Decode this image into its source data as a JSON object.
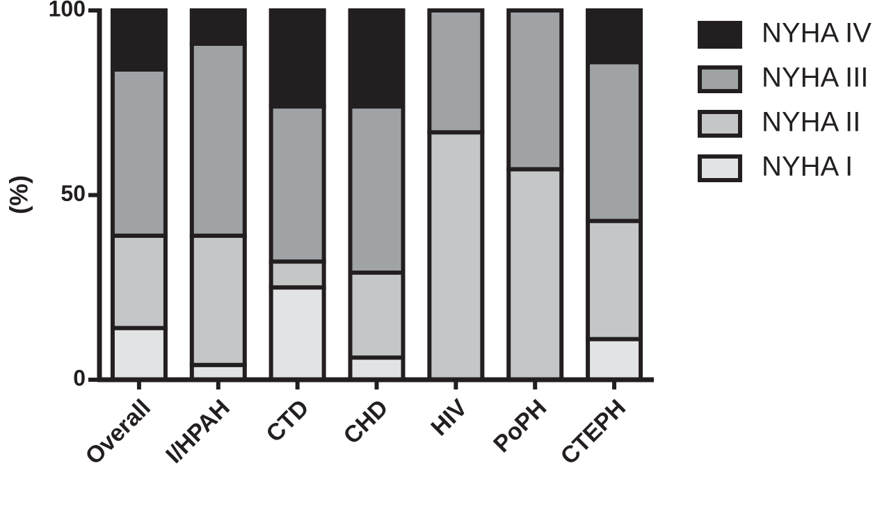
{
  "chart_data": {
    "type": "stacked_bar",
    "y_label": "(%)",
    "categories": [
      "Overall",
      "I/HPAH",
      "CTD",
      "CHD",
      "HIV",
      "PoPH",
      "CTEPH"
    ],
    "series": [
      {
        "name": "NYHA I",
        "color": "#e2e3e4",
        "values": [
          14,
          4,
          25,
          6,
          0,
          0,
          11
        ]
      },
      {
        "name": "NYHA II",
        "color": "#c5c6c8",
        "values": [
          25,
          35,
          7,
          23,
          67,
          57,
          32
        ]
      },
      {
        "name": "NYHA III",
        "color": "#a0a3a6",
        "values": [
          45,
          52,
          42,
          45,
          33,
          43,
          43
        ]
      },
      {
        "name": "NYHA IV",
        "color": "#231f20",
        "values": [
          16,
          9,
          26,
          26,
          0,
          0,
          14
        ]
      }
    ],
    "ylim": [
      0,
      100
    ],
    "yticks": [
      0,
      50,
      100
    ],
    "grid": false,
    "legend": "right"
  }
}
